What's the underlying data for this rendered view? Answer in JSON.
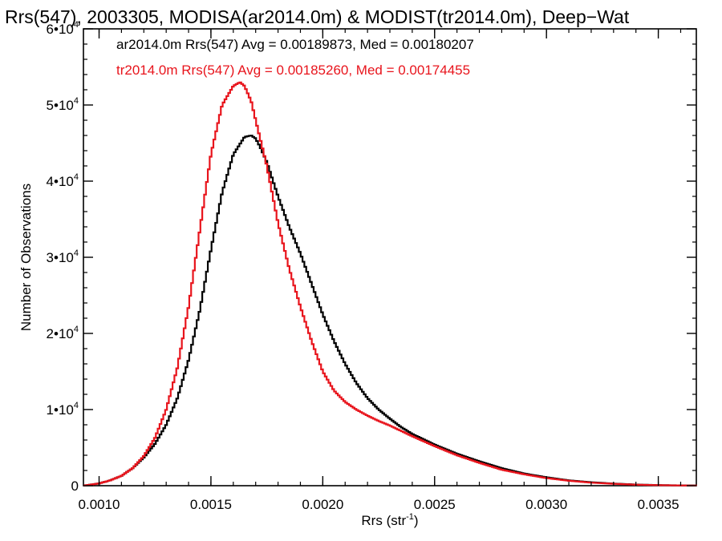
{
  "chart_data": {
    "type": "line",
    "title": "Rrs(547), 2003305, MODISA(ar2014.0m) & MODIST(tr2014.0m), Deep−Wat",
    "xlabel": "Rrs (str",
    "xlabel_sup": "-1",
    "xlabel_suffix": ")",
    "ylabel": "Number of Observations",
    "xlim": [
      0.00093,
      0.00367
    ],
    "ylim": [
      0,
      60000
    ],
    "grid": false,
    "x_ticks": [
      0.001,
      0.0015,
      0.002,
      0.0025,
      0.003,
      0.0035
    ],
    "x_tick_labels": [
      "0.0010",
      "0.0015",
      "0.0020",
      "0.0025",
      "0.0030",
      "0.0035"
    ],
    "y_ticks": [
      {
        "value": 0,
        "mantissa": "0",
        "exp": ""
      },
      {
        "value": 10000,
        "mantissa": "1•10",
        "exp": "4"
      },
      {
        "value": 20000,
        "mantissa": "2•10",
        "exp": "4"
      },
      {
        "value": 30000,
        "mantissa": "3•10",
        "exp": "4"
      },
      {
        "value": 40000,
        "mantissa": "4•10",
        "exp": "4"
      },
      {
        "value": 50000,
        "mantissa": "5•10",
        "exp": "4"
      },
      {
        "value": 60000,
        "mantissa": "6•10",
        "exp": "4"
      }
    ],
    "annotations": [
      {
        "text": "ar2014.0m Rrs(547) Avg = 0.00189873, Med = 0.00180207",
        "color": "#000000"
      },
      {
        "text": "tr2014.0m Rrs(547) Avg = 0.00185260, Med = 0.00174455",
        "color": "#e8141c"
      }
    ],
    "series": [
      {
        "color": "#000000",
        "x": [
          0.00093,
          0.001,
          0.00105,
          0.0011,
          0.00115,
          0.0012,
          0.00125,
          0.0013,
          0.00135,
          0.0014,
          0.00145,
          0.0015,
          0.00155,
          0.0016,
          0.00165,
          0.00168,
          0.0017,
          0.00172,
          0.00175,
          0.0018,
          0.00185,
          0.0019,
          0.00195,
          0.002,
          0.00205,
          0.0021,
          0.00215,
          0.0022,
          0.00225,
          0.0023,
          0.00235,
          0.0024,
          0.0025,
          0.0026,
          0.0027,
          0.0028,
          0.0029,
          0.003,
          0.0031,
          0.0032,
          0.0033,
          0.0034,
          0.0035,
          0.0036,
          0.00367
        ],
        "values": [
          0,
          300,
          700,
          1300,
          2300,
          3700,
          5500,
          8000,
          11500,
          16500,
          23000,
          31000,
          38500,
          43500,
          45800,
          46000,
          45600,
          44500,
          42500,
          38000,
          34000,
          30500,
          26500,
          22500,
          19000,
          16000,
          13500,
          11500,
          10000,
          8800,
          7700,
          6800,
          5400,
          4200,
          3200,
          2300,
          1600,
          1100,
          700,
          450,
          280,
          150,
          80,
          40,
          20
        ]
      },
      {
        "color": "#e8141c",
        "x": [
          0.00093,
          0.001,
          0.00105,
          0.0011,
          0.00115,
          0.0012,
          0.00125,
          0.0013,
          0.00135,
          0.0014,
          0.00145,
          0.0015,
          0.00155,
          0.0016,
          0.00163,
          0.00165,
          0.00168,
          0.0017,
          0.00175,
          0.0018,
          0.00185,
          0.0019,
          0.00195,
          0.002,
          0.00205,
          0.0021,
          0.00215,
          0.0022,
          0.00225,
          0.0023,
          0.00235,
          0.0024,
          0.0025,
          0.0026,
          0.0027,
          0.0028,
          0.0029,
          0.003,
          0.0031,
          0.0032,
          0.0033,
          0.0034,
          0.0035,
          0.0036,
          0.00367
        ],
        "values": [
          0,
          300,
          700,
          1300,
          2300,
          3900,
          6300,
          10000,
          15500,
          23500,
          33500,
          43500,
          50000,
          52500,
          53000,
          52500,
          50500,
          48000,
          42000,
          34500,
          28500,
          23500,
          19000,
          15000,
          12500,
          11000,
          10000,
          9200,
          8500,
          7900,
          7200,
          6500,
          5200,
          4000,
          3000,
          2100,
          1500,
          1000,
          650,
          400,
          250,
          130,
          70,
          30,
          15
        ]
      }
    ]
  }
}
